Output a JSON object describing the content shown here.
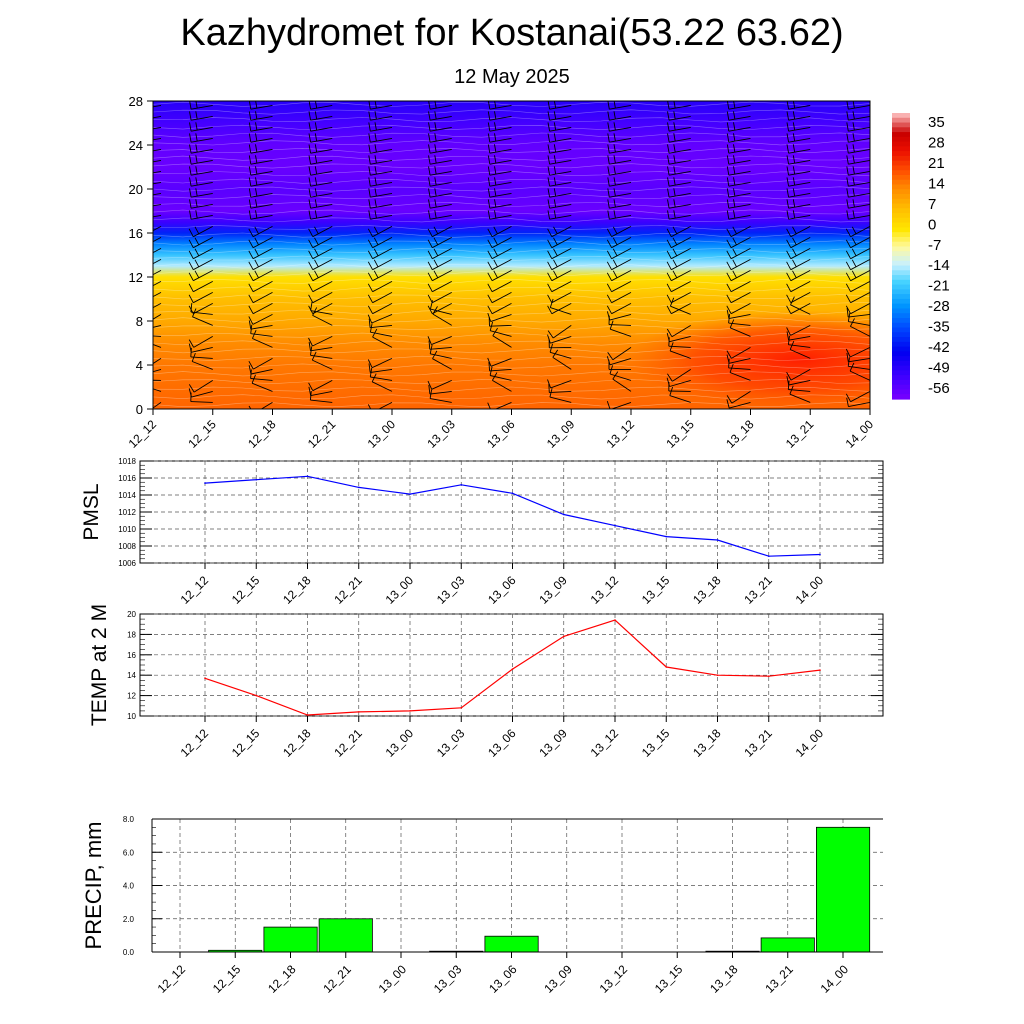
{
  "title": "Kazhydromet for Kostanai(53.22 63.62)",
  "subtitle": "12 May 2025",
  "colors": {
    "pmsl_line": "#0000ff",
    "temp_line": "#ff0000",
    "precip_bar": "#00ff00",
    "grid": "#555555",
    "barb": "#000000"
  },
  "chart_data": [
    {
      "type": "heatmap",
      "name_hint": "temperature cross-section with wind barbs",
      "x_ticks": [
        "12_12",
        "12_15",
        "12_18",
        "12_21",
        "13_00",
        "13_03",
        "13_06",
        "13_09",
        "13_12",
        "13_15",
        "13_18",
        "13_21",
        "14_00"
      ],
      "y_ticks": [
        0,
        4,
        8,
        12,
        16,
        20,
        24,
        28
      ],
      "ylim": [
        0,
        28
      ],
      "colorbar_labels": [
        35,
        28,
        21,
        14,
        7,
        0,
        -7,
        -14,
        -21,
        -28,
        -35,
        -42,
        -49,
        -56
      ],
      "colorbar_range": [
        -60,
        38
      ],
      "temperature_profile": [
        {
          "level": 0,
          "value": 16
        },
        {
          "level": 2,
          "value": 15
        },
        {
          "level": 4,
          "value": 14
        },
        {
          "level": 6,
          "value": 12
        },
        {
          "level": 8,
          "value": 8
        },
        {
          "level": 10,
          "value": 5
        },
        {
          "level": 12,
          "value": -1
        },
        {
          "level": 13,
          "value": -15
        },
        {
          "level": 14,
          "value": -22
        },
        {
          "level": 15,
          "value": -30
        },
        {
          "level": 16,
          "value": -40
        },
        {
          "level": 17,
          "value": -52
        },
        {
          "level": 18,
          "value": -58
        },
        {
          "level": 20,
          "value": -56
        },
        {
          "level": 22,
          "value": -58
        },
        {
          "level": 24,
          "value": -57
        },
        {
          "level": 26,
          "value": -53
        },
        {
          "level": 28,
          "value": -49
        }
      ],
      "warm_core": {
        "x_center": 10.8,
        "y_center": 4.5,
        "value": 22
      }
    },
    {
      "type": "line",
      "ylabel": "PMSL",
      "categories": [
        "12_12",
        "12_15",
        "12_18",
        "12_21",
        "13_00",
        "13_03",
        "13_06",
        "13_09",
        "13_12",
        "13_15",
        "13_18",
        "13_21",
        "14_00"
      ],
      "values": [
        1015.4,
        1015.8,
        1016.2,
        1014.9,
        1014.1,
        1015.2,
        1014.2,
        1011.7,
        1010.4,
        1009.1,
        1008.7,
        1006.8,
        1007.0
      ],
      "ylim": [
        1006,
        1018
      ],
      "y_ticks": [
        1006,
        1008,
        1010,
        1012,
        1014,
        1016,
        1018
      ]
    },
    {
      "type": "line",
      "ylabel": "TEMP at 2 M",
      "categories": [
        "12_12",
        "12_15",
        "12_18",
        "12_21",
        "13_00",
        "13_03",
        "13_06",
        "13_09",
        "13_12",
        "13_15",
        "13_18",
        "13_21",
        "14_00"
      ],
      "values": [
        13.7,
        12.0,
        10.1,
        10.4,
        10.5,
        10.8,
        14.6,
        17.8,
        19.4,
        14.8,
        14.0,
        13.9,
        14.5
      ],
      "ylim": [
        10,
        20
      ],
      "y_ticks": [
        10,
        12,
        14,
        16,
        18,
        20
      ]
    },
    {
      "type": "bar",
      "ylabel": "PRECIP, mm",
      "categories": [
        "12_12",
        "12_15",
        "12_18",
        "12_21",
        "13_00",
        "13_03",
        "13_06",
        "13_09",
        "13_12",
        "13_15",
        "13_18",
        "13_21",
        "14_00"
      ],
      "values": [
        0.0,
        0.1,
        1.5,
        2.0,
        0.0,
        0.05,
        0.95,
        0.0,
        0.0,
        0.0,
        0.05,
        0.85,
        7.5
      ],
      "ylim": [
        0,
        8
      ],
      "y_ticks": [
        "0.0",
        "2.0",
        "4.0",
        "6.0",
        "8.0"
      ]
    }
  ]
}
